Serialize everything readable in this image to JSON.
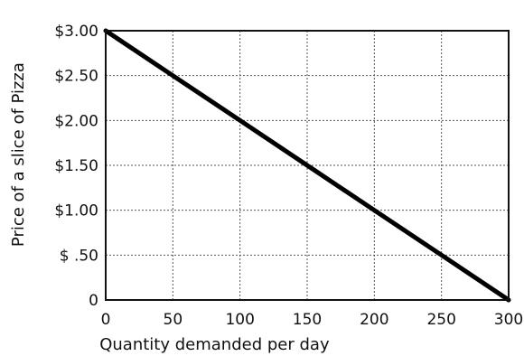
{
  "chart_data": {
    "type": "line",
    "xlabel": "Quantity demanded per day",
    "ylabel": "Price of a slice of Pizza",
    "xlim": [
      0,
      300
    ],
    "ylim": [
      0,
      3
    ],
    "grid": true,
    "x_ticks": [
      {
        "value": 0,
        "label": "0"
      },
      {
        "value": 50,
        "label": "50"
      },
      {
        "value": 100,
        "label": "100"
      },
      {
        "value": 150,
        "label": "150"
      },
      {
        "value": 200,
        "label": "200"
      },
      {
        "value": 250,
        "label": "250"
      },
      {
        "value": 300,
        "label": "300"
      }
    ],
    "y_ticks": [
      {
        "value": 0,
        "label": "0"
      },
      {
        "value": 0.5,
        "label": "$ .50"
      },
      {
        "value": 1,
        "label": "$1.00"
      },
      {
        "value": 1.5,
        "label": "$1.50"
      },
      {
        "value": 2,
        "label": "$2.00"
      },
      {
        "value": 2.5,
        "label": "$2.50"
      },
      {
        "value": 3,
        "label": "$3.00"
      }
    ],
    "series": [
      {
        "points": [
          {
            "x": 0,
            "y": 3
          },
          {
            "x": 50,
            "y": 2.5
          },
          {
            "x": 100,
            "y": 2
          },
          {
            "x": 150,
            "y": 1.5
          },
          {
            "x": 200,
            "y": 1
          },
          {
            "x": 250,
            "y": 0.5
          },
          {
            "x": 300,
            "y": 0
          }
        ],
        "color": "#000000"
      }
    ]
  }
}
